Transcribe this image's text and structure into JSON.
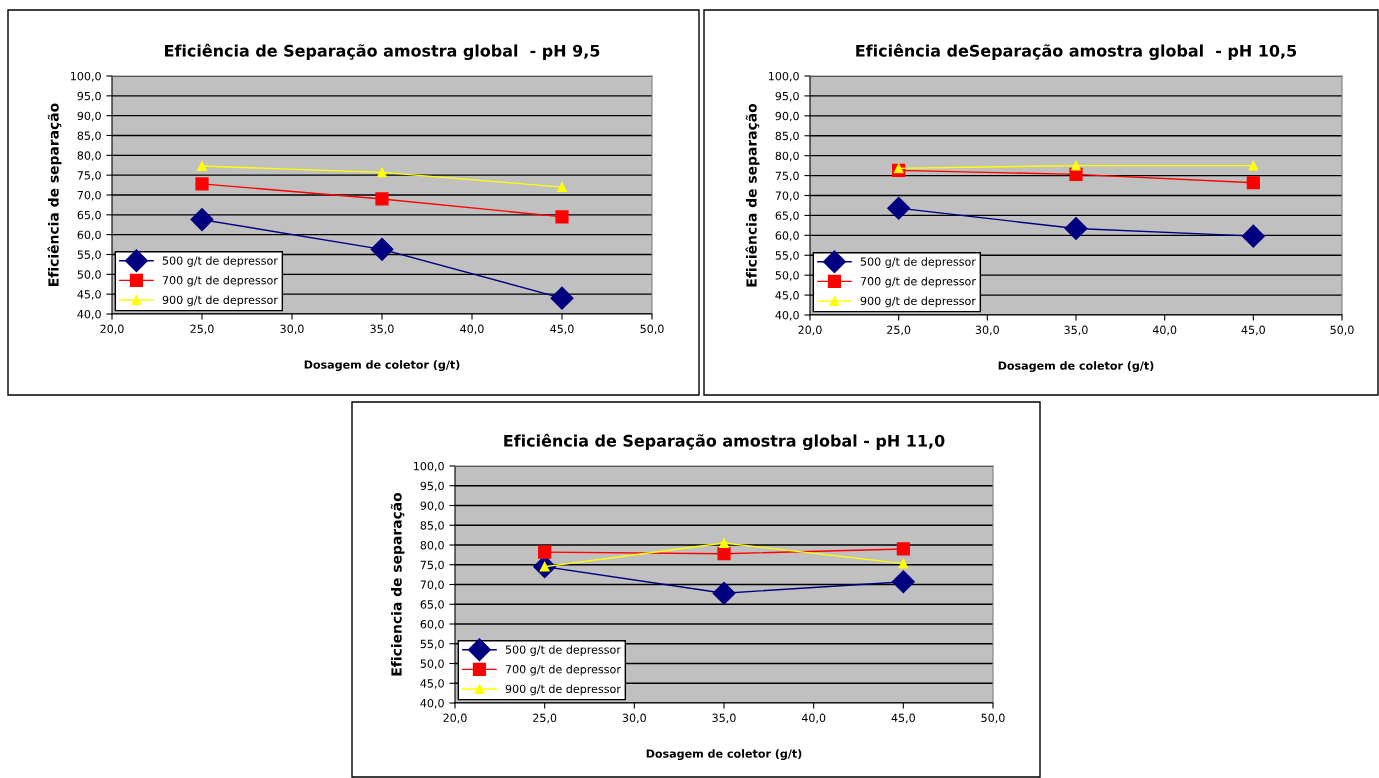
{
  "chart_data": [
    {
      "type": "line",
      "title": "Eficiência de Separação amostra global  - pH 9,5",
      "xlabel": "Dosagem de coletor (g/t)",
      "ylabel": "Eficiência de separação",
      "x": [
        25,
        35,
        45
      ],
      "series": [
        {
          "name": "500 g/t de depressor",
          "color": "#000080",
          "marker": "diamond",
          "values": [
            63.8,
            56.3,
            44.0
          ]
        },
        {
          "name": "700 g/t de depressor",
          "color": "#ff0000",
          "marker": "square",
          "values": [
            72.8,
            69.0,
            64.5
          ]
        },
        {
          "name": "900 g/t de depressor",
          "color": "#ffff00",
          "marker": "triangle",
          "values": [
            77.3,
            75.7,
            72.0
          ]
        }
      ],
      "xlim": [
        20,
        50
      ],
      "xticks": [
        {
          "value": 20,
          "label": "20,0"
        },
        {
          "value": 25,
          "label": "25,0"
        },
        {
          "value": 30,
          "label": "30,0"
        },
        {
          "value": 35,
          "label": "35,0"
        },
        {
          "value": 40,
          "label": "40,0"
        },
        {
          "value": 45,
          "label": "45,0"
        },
        {
          "value": 50,
          "label": "50,0"
        }
      ],
      "ylim": [
        40,
        100
      ],
      "yticks": [
        {
          "value": 40,
          "label": "40,0"
        },
        {
          "value": 45,
          "label": "45,0"
        },
        {
          "value": 50,
          "label": "50,0"
        },
        {
          "value": 55,
          "label": "55,0"
        },
        {
          "value": 60,
          "label": "60,0"
        },
        {
          "value": 65,
          "label": "65,0"
        },
        {
          "value": 70,
          "label": "70,0"
        },
        {
          "value": 75,
          "label": "75,0"
        },
        {
          "value": 80,
          "label": "80,0"
        },
        {
          "value": 85,
          "label": "85,0"
        },
        {
          "value": 90,
          "label": "90,0"
        },
        {
          "value": 95,
          "label": "95,0"
        },
        {
          "value": 100,
          "label": "100,0"
        }
      ],
      "grid": "y",
      "legend": "bottom left"
    },
    {
      "type": "line",
      "title": "Eficiência deSeparação amostra global  - pH 10,5",
      "xlabel": "Dosagem de coletor (g/t)",
      "ylabel": "Eficiência de separação",
      "x": [
        25,
        35,
        45
      ],
      "series": [
        {
          "name": "500 g/t de depressor",
          "color": "#000080",
          "marker": "diamond",
          "values": [
            66.8,
            61.7,
            59.8
          ]
        },
        {
          "name": "700 g/t de depressor",
          "color": "#ff0000",
          "marker": "square",
          "values": [
            76.3,
            75.3,
            73.2
          ]
        },
        {
          "name": "900 g/t de depressor",
          "color": "#ffff00",
          "marker": "triangle",
          "values": [
            76.8,
            77.5,
            77.5
          ]
        }
      ],
      "xlim": [
        20,
        50
      ],
      "xticks": [
        {
          "value": 20,
          "label": "20,0"
        },
        {
          "value": 25,
          "label": "25,0"
        },
        {
          "value": 30,
          "label": "30,0"
        },
        {
          "value": 35,
          "label": "35,0"
        },
        {
          "value": 40,
          "label": "40,0"
        },
        {
          "value": 45,
          "label": "45,0"
        },
        {
          "value": 50,
          "label": "50,0"
        }
      ],
      "ylim": [
        40,
        100
      ],
      "yticks": [
        {
          "value": 40,
          "label": "40,0"
        },
        {
          "value": 45,
          "label": "45,0"
        },
        {
          "value": 50,
          "label": "50,0"
        },
        {
          "value": 55,
          "label": "55,0"
        },
        {
          "value": 60,
          "label": "60,0"
        },
        {
          "value": 65,
          "label": "65,0"
        },
        {
          "value": 70,
          "label": "70,0"
        },
        {
          "value": 75,
          "label": "75,0"
        },
        {
          "value": 80,
          "label": "80,0"
        },
        {
          "value": 85,
          "label": "85,0"
        },
        {
          "value": 90,
          "label": "90,0"
        },
        {
          "value": 95,
          "label": "95,0"
        },
        {
          "value": 100,
          "label": "100,0"
        }
      ],
      "grid": "y",
      "legend": "bottom left"
    },
    {
      "type": "line",
      "title": "Eficiência de Separação amostra global - pH 11,0",
      "xlabel": "Dosagem de coletor (g/t)",
      "ylabel": "Eficiencia de separação",
      "x": [
        25,
        35,
        45
      ],
      "series": [
        {
          "name": "500 g/t de depressor",
          "color": "#000080",
          "marker": "diamond",
          "values": [
            74.5,
            67.8,
            70.7
          ]
        },
        {
          "name": "700 g/t de depressor",
          "color": "#ff0000",
          "marker": "square",
          "values": [
            78.2,
            77.8,
            79.0
          ]
        },
        {
          "name": "900 g/t de depressor",
          "color": "#ffff00",
          "marker": "triangle",
          "values": [
            74.5,
            80.5,
            75.3
          ]
        }
      ],
      "xlim": [
        20,
        50
      ],
      "xticks": [
        {
          "value": 20,
          "label": "20,0"
        },
        {
          "value": 25,
          "label": "25,0"
        },
        {
          "value": 30,
          "label": "30,0"
        },
        {
          "value": 35,
          "label": "35,0"
        },
        {
          "value": 40,
          "label": "40,0"
        },
        {
          "value": 45,
          "label": "45,0"
        },
        {
          "value": 50,
          "label": "50,0"
        }
      ],
      "ylim": [
        40,
        100
      ],
      "yticks": [
        {
          "value": 40,
          "label": "40,0"
        },
        {
          "value": 45,
          "label": "45,0"
        },
        {
          "value": 50,
          "label": "50,0"
        },
        {
          "value": 55,
          "label": "55,0"
        },
        {
          "value": 60,
          "label": "60,0"
        },
        {
          "value": 65,
          "label": "65,0"
        },
        {
          "value": 70,
          "label": "70,0"
        },
        {
          "value": 75,
          "label": "75,0"
        },
        {
          "value": 80,
          "label": "80,0"
        },
        {
          "value": 85,
          "label": "85,0"
        },
        {
          "value": 90,
          "label": "90,0"
        },
        {
          "value": 95,
          "label": "95,0"
        },
        {
          "value": 100,
          "label": "100,0"
        }
      ],
      "grid": "y",
      "legend": "bottom left"
    }
  ]
}
